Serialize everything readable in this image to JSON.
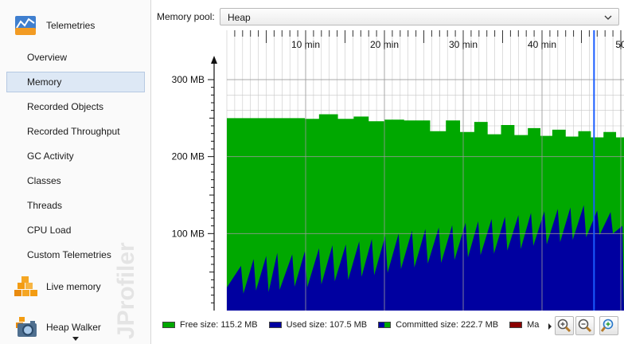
{
  "sidebar": {
    "telemetries_label": "Telemetries",
    "items": [
      {
        "label": "Overview"
      },
      {
        "label": "Memory",
        "selected": true
      },
      {
        "label": "Recorded Objects"
      },
      {
        "label": "Recorded Throughput"
      },
      {
        "label": "GC Activity"
      },
      {
        "label": "Classes"
      },
      {
        "label": "Threads"
      },
      {
        "label": "CPU Load"
      },
      {
        "label": "Custom Telemetries"
      }
    ],
    "live_memory_label": "Live memory",
    "heap_walker_label": "Heap Walker",
    "watermark": "JProfiler"
  },
  "toolbar": {
    "pool_label": "Memory pool:",
    "pool_value": "Heap"
  },
  "chart_data": {
    "type": "area",
    "y_tick_labels": [
      "300 MB",
      "200 MB",
      "100 MB"
    ],
    "y_ticks": [
      300,
      200,
      100
    ],
    "ylim": [
      0,
      300
    ],
    "x_tick_labels": [
      "10 min",
      "20 min",
      "30 min",
      "40 min",
      "50"
    ],
    "x_ticks": [
      10,
      20,
      30,
      40,
      50
    ],
    "xlim": [
      0,
      50
    ],
    "grid": true,
    "committed_series": [
      {
        "x": 0,
        "y": 250
      },
      {
        "x": 3.3,
        "y": 250
      },
      {
        "x": 6,
        "y": 250
      },
      {
        "x": 9.9,
        "y": 249
      },
      {
        "x": 11.7,
        "y": 255
      },
      {
        "x": 14.1,
        "y": 249
      },
      {
        "x": 16.1,
        "y": 252
      },
      {
        "x": 18,
        "y": 246
      },
      {
        "x": 20,
        "y": 248
      },
      {
        "x": 22.5,
        "y": 247
      },
      {
        "x": 25.8,
        "y": 233
      },
      {
        "x": 27.8,
        "y": 247
      },
      {
        "x": 29.6,
        "y": 232
      },
      {
        "x": 31.4,
        "y": 245
      },
      {
        "x": 33.1,
        "y": 229
      },
      {
        "x": 34.8,
        "y": 241
      },
      {
        "x": 36.5,
        "y": 228
      },
      {
        "x": 38.2,
        "y": 237
      },
      {
        "x": 39.8,
        "y": 227
      },
      {
        "x": 41.3,
        "y": 235
      },
      {
        "x": 43,
        "y": 226
      },
      {
        "x": 44.6,
        "y": 233
      },
      {
        "x": 46.2,
        "y": 225
      },
      {
        "x": 47.8,
        "y": 232
      },
      {
        "x": 49.4,
        "y": 225
      },
      {
        "x": 50.2,
        "y": 225
      }
    ],
    "used_series": [
      {
        "x": 0,
        "y": 30
      },
      {
        "x": 1.8,
        "y": 58
      },
      {
        "x": 2.1,
        "y": 22
      },
      {
        "x": 3.4,
        "y": 67
      },
      {
        "x": 3.7,
        "y": 26
      },
      {
        "x": 5.0,
        "y": 71
      },
      {
        "x": 5.3,
        "y": 24
      },
      {
        "x": 6.4,
        "y": 75
      },
      {
        "x": 6.7,
        "y": 27
      },
      {
        "x": 8.3,
        "y": 73
      },
      {
        "x": 8.6,
        "y": 31
      },
      {
        "x": 9.9,
        "y": 77
      },
      {
        "x": 10.2,
        "y": 30
      },
      {
        "x": 11.7,
        "y": 81
      },
      {
        "x": 12.0,
        "y": 34
      },
      {
        "x": 13.4,
        "y": 85
      },
      {
        "x": 13.7,
        "y": 38
      },
      {
        "x": 15.1,
        "y": 86
      },
      {
        "x": 15.4,
        "y": 40
      },
      {
        "x": 16.8,
        "y": 90
      },
      {
        "x": 17.1,
        "y": 44
      },
      {
        "x": 18.4,
        "y": 93
      },
      {
        "x": 18.7,
        "y": 46
      },
      {
        "x": 20.1,
        "y": 97
      },
      {
        "x": 20.4,
        "y": 49
      },
      {
        "x": 21.8,
        "y": 100
      },
      {
        "x": 22.1,
        "y": 54
      },
      {
        "x": 23.5,
        "y": 104
      },
      {
        "x": 23.8,
        "y": 56
      },
      {
        "x": 25.2,
        "y": 106
      },
      {
        "x": 25.5,
        "y": 61
      },
      {
        "x": 26.9,
        "y": 108
      },
      {
        "x": 27.2,
        "y": 62
      },
      {
        "x": 28.6,
        "y": 111
      },
      {
        "x": 28.9,
        "y": 66
      },
      {
        "x": 30.3,
        "y": 114
      },
      {
        "x": 30.6,
        "y": 69
      },
      {
        "x": 31.9,
        "y": 116
      },
      {
        "x": 32.2,
        "y": 72
      },
      {
        "x": 33.6,
        "y": 119
      },
      {
        "x": 33.9,
        "y": 74
      },
      {
        "x": 35.3,
        "y": 122
      },
      {
        "x": 35.6,
        "y": 78
      },
      {
        "x": 37.0,
        "y": 124
      },
      {
        "x": 37.3,
        "y": 80
      },
      {
        "x": 38.6,
        "y": 127
      },
      {
        "x": 38.9,
        "y": 84
      },
      {
        "x": 40.3,
        "y": 129
      },
      {
        "x": 40.6,
        "y": 86
      },
      {
        "x": 42.0,
        "y": 132
      },
      {
        "x": 42.3,
        "y": 89
      },
      {
        "x": 43.6,
        "y": 134
      },
      {
        "x": 43.9,
        "y": 92
      },
      {
        "x": 45.3,
        "y": 137
      },
      {
        "x": 45.6,
        "y": 95
      },
      {
        "x": 47.0,
        "y": 130
      },
      {
        "x": 47.3,
        "y": 98
      },
      {
        "x": 48.7,
        "y": 128
      },
      {
        "x": 49.0,
        "y": 100
      },
      {
        "x": 50.2,
        "y": 110
      }
    ],
    "cursor_x": 46.6,
    "legend": [
      {
        "label": "Free size: 115.2 MB",
        "color": "#00a800"
      },
      {
        "label": "Used size: 107.5 MB",
        "color": "#0000a0"
      },
      {
        "label": "Committed size: 222.7 MB",
        "color": "#00a800",
        "color2": "#0000a0"
      },
      {
        "label": "Ma",
        "color": "#8b0000"
      }
    ],
    "colors": {
      "free": "#00a800",
      "used": "#0000a0",
      "cursor": "#1a5cff",
      "grid": "#c8c8c8"
    }
  }
}
